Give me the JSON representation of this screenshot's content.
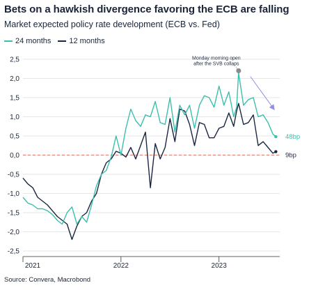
{
  "title": "Bets on a hawkish divergence favoring the ECB are falling",
  "subtitle": "Market expected policy rate development (ECB vs. Fed)",
  "source": "Source: Convera, Macrobond",
  "colors": {
    "series_24m": "#3bbfad",
    "series_12m": "#1a2540",
    "zero_line": "#e0897a",
    "arrow": "#8f8fe6",
    "marker": "#8a8a8a"
  },
  "chart_data": {
    "type": "line",
    "title": "Bets on a hawkish divergence favoring the ECB are falling",
    "subtitle": "Market expected policy rate development (ECB vs. Fed)",
    "xlabel": "",
    "ylabel": "",
    "xlim": [
      2021.0,
      2023.62
    ],
    "ylim": [
      -2.5,
      2.5
    ],
    "y_ticks": [
      "2,5",
      "2,0",
      "1,5",
      "1,0",
      "0,5",
      "0,0",
      "-0,5",
      "-1,0",
      "-1,5",
      "-2,0",
      "-2,5"
    ],
    "x_ticks": [
      {
        "x": 2021.0,
        "label": "2021"
      },
      {
        "x": 2022.0,
        "label": "2022"
      },
      {
        "x": 2023.0,
        "label": "2023"
      }
    ],
    "legend": "top-left",
    "series": [
      {
        "name": "24 months",
        "color": "#3bbfad",
        "x": [
          2021.0,
          2021.05,
          2021.1,
          2021.15,
          2021.2,
          2021.25,
          2021.3,
          2021.35,
          2021.4,
          2021.45,
          2021.5,
          2021.55,
          2021.6,
          2021.65,
          2021.7,
          2021.75,
          2021.8,
          2021.85,
          2021.9,
          2021.95,
          2022.0,
          2022.05,
          2022.1,
          2022.15,
          2022.2,
          2022.25,
          2022.3,
          2022.35,
          2022.4,
          2022.45,
          2022.5,
          2022.55,
          2022.6,
          2022.65,
          2022.7,
          2022.75,
          2022.8,
          2022.85,
          2022.9,
          2022.95,
          2023.0,
          2023.05,
          2023.1,
          2023.15,
          2023.18,
          2023.2,
          2023.25,
          2023.3,
          2023.35,
          2023.4,
          2023.45,
          2023.5,
          2023.55,
          2023.58
        ],
        "y": [
          -1.1,
          -1.25,
          -1.3,
          -1.4,
          -1.4,
          -1.45,
          -1.55,
          -1.7,
          -1.8,
          -1.5,
          -1.35,
          -1.8,
          -1.6,
          -1.75,
          -1.3,
          -0.8,
          -0.5,
          -0.4,
          -0.05,
          0.5,
          0.0,
          0.7,
          1.2,
          0.9,
          0.75,
          1.05,
          1.0,
          1.4,
          0.85,
          0.8,
          1.5,
          0.6,
          1.3,
          1.05,
          1.3,
          0.7,
          1.3,
          1.55,
          1.5,
          1.25,
          1.8,
          1.3,
          1.65,
          1.0,
          1.25,
          2.15,
          1.3,
          1.45,
          1.5,
          1.0,
          1.05,
          0.85,
          0.55,
          0.48
        ]
      },
      {
        "name": "12 months",
        "color": "#1a2540",
        "x": [
          2021.0,
          2021.05,
          2021.1,
          2021.15,
          2021.2,
          2021.25,
          2021.3,
          2021.35,
          2021.4,
          2021.45,
          2021.5,
          2021.55,
          2021.6,
          2021.65,
          2021.7,
          2021.75,
          2021.8,
          2021.85,
          2021.9,
          2021.95,
          2022.0,
          2022.05,
          2022.1,
          2022.15,
          2022.2,
          2022.25,
          2022.3,
          2022.35,
          2022.4,
          2022.45,
          2022.5,
          2022.55,
          2022.6,
          2022.65,
          2022.7,
          2022.75,
          2022.8,
          2022.85,
          2022.9,
          2022.95,
          2023.0,
          2023.05,
          2023.1,
          2023.15,
          2023.18,
          2023.2,
          2023.25,
          2023.3,
          2023.35,
          2023.4,
          2023.45,
          2023.5,
          2023.55,
          2023.58
        ],
        "y": [
          -0.6,
          -0.75,
          -0.85,
          -1.1,
          -1.2,
          -1.3,
          -1.45,
          -1.6,
          -1.7,
          -1.8,
          -2.2,
          -1.85,
          -1.6,
          -1.5,
          -1.2,
          -1.0,
          -0.5,
          -0.2,
          -0.1,
          0.1,
          0.05,
          -0.05,
          0.2,
          -0.1,
          0.25,
          0.6,
          -0.85,
          0.3,
          -0.1,
          0.2,
          0.95,
          0.35,
          1.2,
          1.15,
          0.8,
          0.25,
          0.85,
          0.8,
          0.45,
          0.45,
          0.7,
          0.75,
          1.1,
          0.75,
          1.15,
          1.35,
          0.8,
          0.85,
          1.05,
          0.25,
          0.35,
          0.2,
          0.05,
          0.09
        ]
      }
    ],
    "reference_line": {
      "y": 0.0,
      "style": "dashed"
    },
    "annotations": [
      {
        "text_lines": [
          "Monday morning open",
          "after the SVB collaps"
        ],
        "x": 2023.2,
        "y": 2.2
      }
    ],
    "end_labels": [
      {
        "series": "24 months",
        "text": "48bp"
      },
      {
        "series": "12 months",
        "text": "9bp"
      }
    ]
  }
}
